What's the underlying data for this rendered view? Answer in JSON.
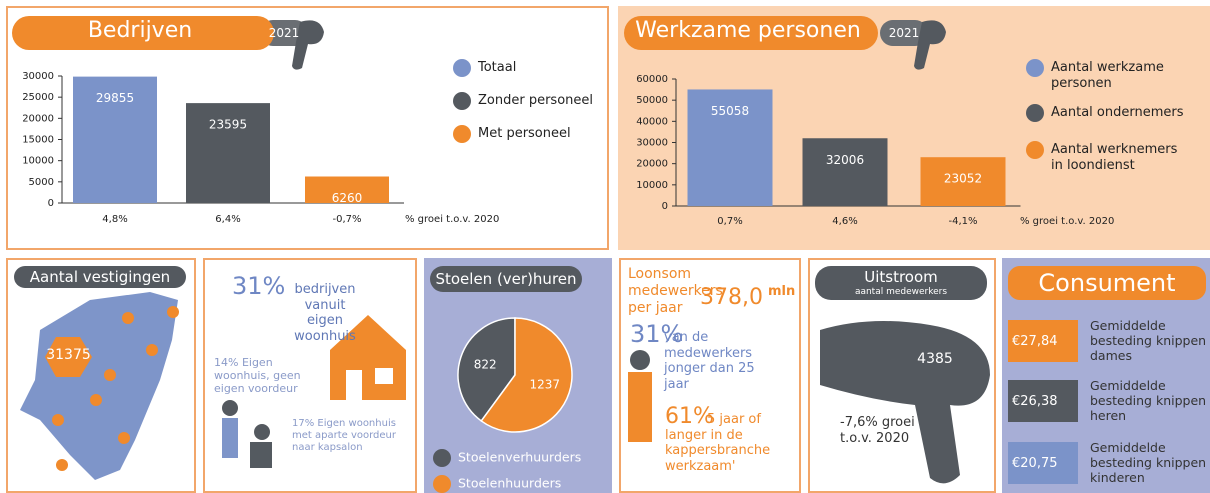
{
  "chart_data": [
    {
      "type": "bar",
      "title": "Bedrijven",
      "badge": "2021",
      "categories": [
        "Totaal",
        "Zonder personeel",
        "Met personeel"
      ],
      "values": [
        29855,
        23595,
        6260
      ],
      "colors": [
        "#7b93c9",
        "#54595f",
        "#f08a2c"
      ],
      "growth_labels": [
        "4,8%",
        "6,4%",
        "-0,7%"
      ],
      "growth_caption": "% groei t.o.v. 2020",
      "ylim": [
        0,
        30000
      ],
      "yticks": [
        0,
        5000,
        10000,
        15000,
        20000,
        25000,
        30000
      ]
    },
    {
      "type": "bar",
      "title": "Werkzame personen",
      "badge": "2021",
      "categories": [
        "Aantal werkzame personen",
        "Aantal ondernemers",
        "Aantal werknemers in loondienst"
      ],
      "values": [
        55058,
        32006,
        23052
      ],
      "colors": [
        "#7b93c9",
        "#54595f",
        "#f08a2c"
      ],
      "growth_labels": [
        "0,7%",
        "4,6%",
        "-4,1%"
      ],
      "growth_caption": "% groei t.o.v. 2020",
      "ylim": [
        0,
        60000
      ],
      "yticks": [
        0,
        10000,
        20000,
        30000,
        40000,
        50000,
        60000
      ]
    },
    {
      "type": "pie",
      "title": "Stoelen (ver)huren",
      "categories": [
        "Stoelenverhuurders",
        "Stoelenhuurders"
      ],
      "values": [
        822,
        1237
      ],
      "colors": [
        "#54595f",
        "#f08a2c"
      ]
    }
  ],
  "vestigingen": {
    "title": "Aantal vestigingen",
    "value": 31375
  },
  "woonhuis": {
    "percent": "31%",
    "text": "bedrijven vanuit eigen woonhuis",
    "note1": "14% Eigen woonhuis, geen eigen voordeur",
    "note2": "17% Eigen woonhuis met aparte voordeur naar kapsalon"
  },
  "loonsom": {
    "label": "Loonsom medewerkers per jaar",
    "amount": "378,0",
    "unit": "mln",
    "stat1_percent": "31%",
    "stat1_text": "van de medewerkers jonger dan 25 jaar",
    "stat2_percent": "61%",
    "stat2_text": "5 jaar of langer in de kappersbranche werkzaam'"
  },
  "uitstroom": {
    "title": "Uitstroom",
    "subtitle": "aantal medewerkers",
    "value": 4385,
    "growth": "-7,6% groei t.o.v. 2020"
  },
  "consument": {
    "title": "Consument",
    "items": [
      {
        "price": "€27,84",
        "label": "Gemiddelde besteding knippen dames",
        "color": "#f08a2c"
      },
      {
        "price": "€26,38",
        "label": "Gemiddelde besteding knippen heren",
        "color": "#54595f"
      },
      {
        "price": "€20,75",
        "label": "Gemiddelde besteding knippen kinderen",
        "color": "#7b93c9"
      }
    ]
  }
}
